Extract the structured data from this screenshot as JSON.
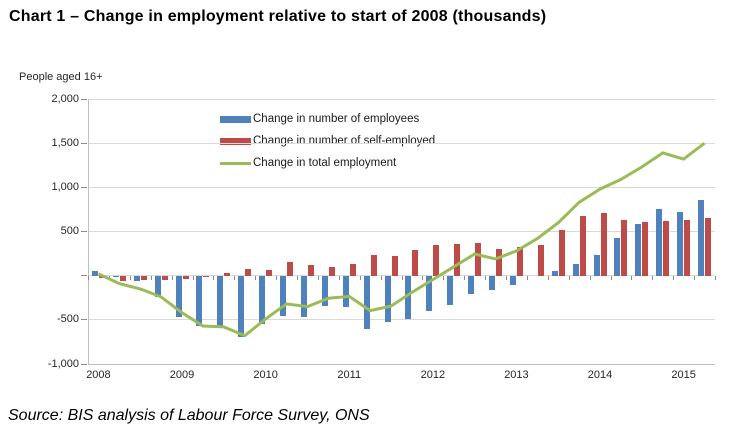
{
  "title": "Chart 1 – Change in employment relative to start of 2008 (thousands)",
  "subtitle": "People aged 16+",
  "source": "Source: BIS analysis of Labour Force Survey, ONS",
  "chart_data": {
    "type": "bar+line",
    "title": "Chart 1 – Change in employment relative to start of 2008 (thousands)",
    "unit_note": "People aged 16+",
    "categories": [
      "2008 Q1",
      "2008 Q2",
      "2008 Q3",
      "2008 Q4",
      "2009 Q1",
      "2009 Q2",
      "2009 Q3",
      "2009 Q4",
      "2010 Q1",
      "2010 Q2",
      "2010 Q3",
      "2010 Q4",
      "2011 Q1",
      "2011 Q2",
      "2011 Q3",
      "2011 Q4",
      "2012 Q1",
      "2012 Q2",
      "2012 Q3",
      "2012 Q4",
      "2013 Q1",
      "2013 Q2",
      "2013 Q3",
      "2013 Q4",
      "2014 Q1",
      "2014 Q2",
      "2014 Q3",
      "2014 Q4",
      "2015 Q1",
      "2015 Q2"
    ],
    "series": [
      {
        "name": "Change in number of employees",
        "type": "bar",
        "color": "#4F81BD",
        "values": [
          55,
          -20,
          -65,
          -240,
          -470,
          -575,
          -570,
          -700,
          -545,
          -460,
          -465,
          -340,
          -350,
          -600,
          -530,
          -490,
          -395,
          -335,
          -210,
          -165,
          -110,
          0,
          50,
          130,
          235,
          430,
          585,
          760,
          720,
          855
        ]
      },
      {
        "name": "Change in number of self-employed",
        "type": "bar",
        "color": "#BE4B48",
        "values": [
          -30,
          -55,
          -45,
          -45,
          -35,
          -10,
          35,
          75,
          65,
          160,
          125,
          100,
          130,
          235,
          225,
          295,
          345,
          355,
          370,
          305,
          320,
          345,
          520,
          675,
          715,
          630,
          605,
          615,
          630,
          650
        ]
      },
      {
        "name": "Change in total employment",
        "type": "line",
        "color": "#9BBB59",
        "values": [
          20,
          -90,
          -150,
          -240,
          -420,
          -570,
          -580,
          -680,
          -490,
          -320,
          -350,
          -255,
          -235,
          -395,
          -345,
          -190,
          -45,
          100,
          245,
          190,
          280,
          420,
          600,
          830,
          980,
          1090,
          1230,
          1390,
          1320,
          1500
        ]
      }
    ],
    "x_tick_labels": [
      "2008",
      "2009",
      "2010",
      "2011",
      "2012",
      "2013",
      "2014",
      "2015"
    ],
    "x_label_every": 4,
    "y_axis": {
      "min": -1000,
      "max": 2000,
      "step": 500,
      "tick_labels": [
        {
          "value": 2000,
          "label": "2,000"
        },
        {
          "value": 1500,
          "label": "1,500"
        },
        {
          "value": 1000,
          "label": "1,000"
        },
        {
          "value": 500,
          "label": "500"
        },
        {
          "value": 0,
          "label": ""
        },
        {
          "value": -500,
          "label": "-500"
        },
        {
          "value": -1000,
          "label": "-1,000"
        }
      ]
    },
    "grid": true,
    "legend_position": "top-center-inside",
    "colors": {
      "grid": "#d9d9d9",
      "axis": "#bfbfbf",
      "tick": "#8c8c8c",
      "text": "#262626"
    }
  }
}
